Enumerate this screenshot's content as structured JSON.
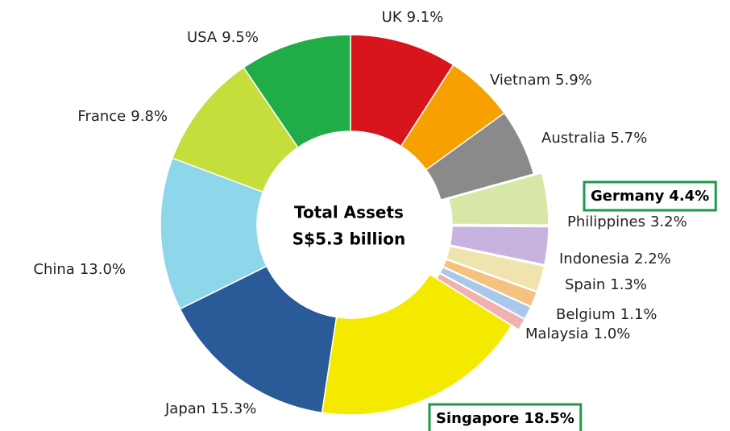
{
  "chart_data": {
    "type": "donut",
    "annotations": [
      "Total Assets",
      "S$5.3 billion"
    ],
    "categories": [
      "UK",
      "Vietnam",
      "Australia",
      "Germany",
      "Philippines",
      "Indonesia",
      "Spain",
      "Belgium",
      "Malaysia",
      "Singapore",
      "Japan",
      "China",
      "France",
      "USA"
    ],
    "values": [
      9.1,
      5.9,
      5.7,
      4.4,
      3.2,
      2.2,
      1.3,
      1.1,
      1.0,
      18.5,
      15.3,
      13.0,
      9.8,
      9.5
    ],
    "value_labels": [
      "9.1%",
      "5.9%",
      "5.7%",
      "4.4%",
      "3.2%",
      "2.2%",
      "1.3%",
      "1.1%",
      "1.0%",
      "18.5%",
      "15.3%",
      "13.0%",
      "9.8%",
      "9.5%"
    ],
    "colors": [
      "#d8141c",
      "#f7a100",
      "#8a8a8a",
      "#d7e8a6",
      "#c8b2e0",
      "#efe4ae",
      "#f5c27f",
      "#a9c8ea",
      "#f1b1b1",
      "#f4ea00",
      "#2b5a98",
      "#8ed6ea",
      "#c6de3c",
      "#20ad48"
    ],
    "highlight": [
      "Germany",
      "Singapore"
    ],
    "highlight_color": "#1d9a4a"
  }
}
